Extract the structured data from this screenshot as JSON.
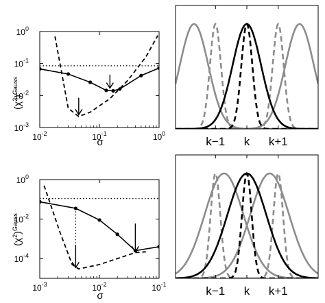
{
  "chart_data": [
    {
      "id": "top-left",
      "type": "line",
      "xscale": "log",
      "yscale": "log",
      "xlim": [
        0.01,
        1
      ],
      "ylim": [
        0.001,
        1
      ],
      "xlabel": "σ",
      "ylabel_main": "(χ",
      "ylabel_sup1": "2",
      "ylabel_close": ")",
      "ylabel_sup2": "Gauss",
      "xticks": [
        {
          "v": 0.01,
          "b": "10",
          "e": "-2"
        },
        {
          "v": 0.1,
          "b": "10",
          "e": "-1"
        },
        {
          "v": 1,
          "b": "10",
          "e": "0"
        }
      ],
      "yticks": [
        {
          "v": 0.001,
          "b": "10",
          "e": "-3"
        },
        {
          "v": 0.01,
          "b": "10",
          "e": "-2"
        },
        {
          "v": 0.1,
          "b": "10",
          "e": "-1"
        },
        {
          "v": 1,
          "b": "10",
          "e": "0"
        }
      ],
      "hline": 0.085,
      "solid": {
        "x": [
          0.01,
          0.03,
          0.07,
          0.13,
          0.17,
          0.22,
          0.5,
          1.0
        ],
        "y": [
          0.068,
          0.047,
          0.026,
          0.0145,
          0.014,
          0.016,
          0.042,
          0.072
        ]
      },
      "dashed": {
        "x": [
          0.018,
          0.03,
          0.045,
          0.07,
          0.15,
          0.3,
          0.6,
          0.95
        ],
        "y": [
          0.7,
          0.004,
          0.0022,
          0.003,
          0.008,
          0.03,
          0.16,
          0.75
        ]
      },
      "arrows": [
        {
          "x": 0.045,
          "ytop": 0.0085,
          "ytip": 0.0025
        },
        {
          "x": 0.15,
          "ytop": 0.045,
          "ytip": 0.017
        }
      ]
    },
    {
      "id": "bottom-left",
      "type": "line",
      "xscale": "log",
      "yscale": "log",
      "xlim": [
        0.001,
        0.1
      ],
      "ylim": [
        1e-05,
        1
      ],
      "xlabel": "σ",
      "ylabel_main": "(χ",
      "ylabel_sup1": "2",
      "ylabel_close": ")",
      "ylabel_sup2": "Gauss",
      "xticks": [
        {
          "v": 0.001,
          "b": "10",
          "e": "-3"
        },
        {
          "v": 0.01,
          "b": "10",
          "e": "-2"
        },
        {
          "v": 0.1,
          "b": "10",
          "e": "-1"
        }
      ],
      "yticks": [
        {
          "v": 0.0001,
          "b": "10",
          "e": "-4"
        },
        {
          "v": 0.01,
          "b": "10",
          "e": "-2"
        },
        {
          "v": 1,
          "b": "10",
          "e": "0"
        }
      ],
      "hline": 0.11,
      "solid": {
        "x": [
          0.001,
          0.004,
          0.01,
          0.02,
          0.04,
          0.1
        ],
        "y": [
          0.075,
          0.035,
          0.009,
          0.0017,
          0.00025,
          0.0004
        ]
      },
      "dashed": {
        "x": [
          0.00118,
          0.0022,
          0.0035,
          0.0045,
          0.01,
          0.04,
          0.06
        ],
        "y": [
          0.5,
          0.002,
          5e-05,
          3e-05,
          5e-05,
          0.0002,
          0.00022
        ]
      },
      "vguide": {
        "x": 0.004,
        "ytop": 0.035,
        "ybottom": 4e-05
      },
      "arrows": [
        {
          "x": 0.004,
          "ytop": 0.0005,
          "ytip": 3.5e-05
        },
        {
          "x": 0.04,
          "ytop": 0.006,
          "ytip": 0.00022
        }
      ]
    },
    {
      "id": "top-right",
      "type": "line",
      "ticks": [
        "k−1",
        "k",
        "k+1"
      ],
      "description_colors": {
        "center": "#000000",
        "neighbors": "#8c8c8c"
      },
      "peak_height": 0.85,
      "solid_width": 0.22,
      "dashed_width": 0.085,
      "gray_offset": 0.22,
      "gray_solid_offset": 0.37
    },
    {
      "id": "bottom-right",
      "type": "line",
      "ticks": [
        "k−1",
        "k",
        "k+1"
      ],
      "description_colors": {
        "center": "#000000",
        "neighbors": "#8c8c8c"
      },
      "peak_height": 0.85,
      "solid_width": 0.3,
      "dashed_width": 0.075,
      "gray_offset": 0.22,
      "gray_solid_offset": 0.16
    }
  ],
  "colors": {
    "line": "#000000",
    "gray": "#8c8c8c"
  }
}
